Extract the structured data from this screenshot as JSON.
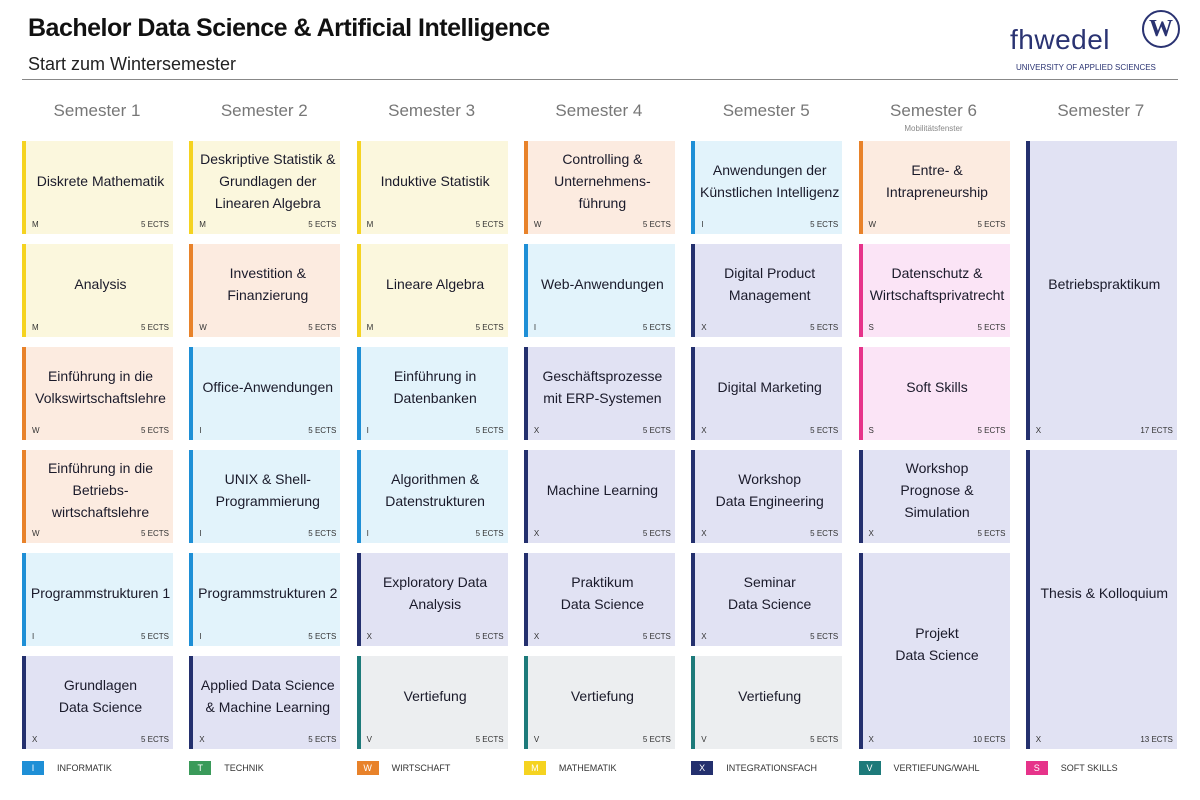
{
  "header": {
    "title": "Bachelor Data Science & Artificial Intelligence",
    "subtitle": "Start zum Wintersemester"
  },
  "logo": {
    "name": "fhwedel",
    "mark": "W",
    "tagline": "UNIVERSITY OF APPLIED SCIENCES"
  },
  "semesters": [
    {
      "name": "Semester 1",
      "courses": [
        {
          "lines": [
            "Diskrete Mathematik"
          ],
          "code": "M",
          "ects": "5 ECTS"
        },
        {
          "lines": [
            "Analysis"
          ],
          "code": "M",
          "ects": "5 ECTS"
        },
        {
          "lines": [
            "Einführung in die",
            "Volkswirtschaftslehre"
          ],
          "code": "W",
          "ects": "5 ECTS"
        },
        {
          "lines": [
            "Einführung in die",
            "Betriebs-",
            "wirtschaftslehre"
          ],
          "code": "W",
          "ects": "5 ECTS"
        },
        {
          "lines": [
            "Programmstrukturen 1"
          ],
          "code": "I",
          "ects": "5 ECTS"
        },
        {
          "lines": [
            "Grundlagen",
            "Data Science"
          ],
          "code": "X",
          "ects": "5 ECTS"
        }
      ]
    },
    {
      "name": "Semester 2",
      "courses": [
        {
          "lines": [
            "Deskriptive Statistik &",
            "Grundlagen der",
            "Linearen Algebra"
          ],
          "code": "M",
          "ects": "5 ECTS"
        },
        {
          "lines": [
            "Investition &",
            "Finanzierung"
          ],
          "code": "W",
          "ects": "5 ECTS"
        },
        {
          "lines": [
            "Office-Anwendungen"
          ],
          "code": "I",
          "ects": "5 ECTS"
        },
        {
          "lines": [
            "UNIX & Shell-",
            "Programmierung"
          ],
          "code": "I",
          "ects": "5 ECTS"
        },
        {
          "lines": [
            "Programmstrukturen 2"
          ],
          "code": "I",
          "ects": "5 ECTS"
        },
        {
          "lines": [
            "Applied Data Science",
            "& Machine Learning"
          ],
          "code": "X",
          "ects": "5 ECTS"
        }
      ]
    },
    {
      "name": "Semester 3",
      "courses": [
        {
          "lines": [
            "Induktive Statistik"
          ],
          "code": "M",
          "ects": "5 ECTS"
        },
        {
          "lines": [
            "Lineare Algebra"
          ],
          "code": "M",
          "ects": "5 ECTS"
        },
        {
          "lines": [
            "Einführung in",
            "Datenbanken"
          ],
          "code": "I",
          "ects": "5 ECTS"
        },
        {
          "lines": [
            "Algorithmen &",
            "Datenstrukturen"
          ],
          "code": "I",
          "ects": "5 ECTS"
        },
        {
          "lines": [
            "Exploratory Data",
            "Analysis"
          ],
          "code": "X",
          "ects": "5 ECTS"
        },
        {
          "lines": [
            "Vertiefung"
          ],
          "code": "V",
          "ects": "5 ECTS"
        }
      ]
    },
    {
      "name": "Semester 4",
      "courses": [
        {
          "lines": [
            "Controlling &",
            "Unternehmens-",
            "führung"
          ],
          "code": "W",
          "ects": "5 ECTS"
        },
        {
          "lines": [
            "Web-Anwendungen"
          ],
          "code": "I",
          "ects": "5 ECTS"
        },
        {
          "lines": [
            "Geschäftsprozesse",
            "mit ERP-Systemen"
          ],
          "code": "X",
          "ects": "5 ECTS"
        },
        {
          "lines": [
            "Machine Learning"
          ],
          "code": "X",
          "ects": "5 ECTS"
        },
        {
          "lines": [
            "Praktikum",
            "Data Science"
          ],
          "code": "X",
          "ects": "5 ECTS"
        },
        {
          "lines": [
            "Vertiefung"
          ],
          "code": "V",
          "ects": "5 ECTS"
        }
      ]
    },
    {
      "name": "Semester 5",
      "courses": [
        {
          "lines": [
            "Anwendungen der",
            "Künstlichen Intelligenz"
          ],
          "code": "I",
          "ects": "5 ECTS"
        },
        {
          "lines": [
            "Digital Product",
            "Management"
          ],
          "code": "X",
          "ects": "5 ECTS"
        },
        {
          "lines": [
            "Digital Marketing"
          ],
          "code": "X",
          "ects": "5 ECTS"
        },
        {
          "lines": [
            "Workshop",
            "Data Engineering"
          ],
          "code": "X",
          "ects": "5 ECTS"
        },
        {
          "lines": [
            "Seminar",
            "Data Science"
          ],
          "code": "X",
          "ects": "5 ECTS"
        },
        {
          "lines": [
            "Vertiefung"
          ],
          "code": "V",
          "ects": "5 ECTS"
        }
      ]
    },
    {
      "name": "Semester 6",
      "note": "Mobilitätsfenster",
      "courses": [
        {
          "lines": [
            "Entre- &",
            "Intrapreneurship"
          ],
          "code": "W",
          "ects": "5 ECTS"
        },
        {
          "lines": [
            "Datenschutz &",
            "Wirtschaftsprivatrecht"
          ],
          "code": "S",
          "ects": "5 ECTS"
        },
        {
          "lines": [
            "Soft Skills"
          ],
          "code": "S",
          "ects": "5 ECTS"
        },
        {
          "lines": [
            "Workshop",
            "Prognose &",
            "Simulation"
          ],
          "code": "X",
          "ects": "5 ECTS"
        },
        {
          "lines": [
            "Projekt",
            "Data Science"
          ],
          "code": "X",
          "ects": "10 ECTS"
        }
      ]
    },
    {
      "name": "Semester 7",
      "courses": [
        {
          "lines": [
            "Betriebspraktikum"
          ],
          "code": "X",
          "ects": "17 ECTS"
        },
        {
          "lines": [
            "Thesis & Kolloquium"
          ],
          "code": "X",
          "ects": "13 ECTS"
        }
      ]
    }
  ],
  "legend": [
    {
      "code": "I",
      "name": "INFORMATIK",
      "color": "#1e8fd6",
      "background": "#e2f3fb"
    },
    {
      "code": "T",
      "name": "TECHNIK",
      "color": "#3a9a5a",
      "background": "#e3f3e8"
    },
    {
      "code": "W",
      "name": "WIRTSCHAFT",
      "color": "#e8822a",
      "background": "#fcebe0"
    },
    {
      "code": "M",
      "name": "MATHEMATIK",
      "color": "#f5d320",
      "background": "#fbf7dd"
    },
    {
      "code": "X",
      "name": "INTEGRATIONSFACH",
      "color": "#24306e",
      "background": "#e1e2f3"
    },
    {
      "code": "V",
      "name": "VERTIEFUNG/WAHL",
      "color": "#1d7a7a",
      "background": "#eceef0"
    },
    {
      "code": "S",
      "name": "SOFT SKILLS",
      "color": "#e6338a",
      "background": "#fbe4f6"
    }
  ]
}
